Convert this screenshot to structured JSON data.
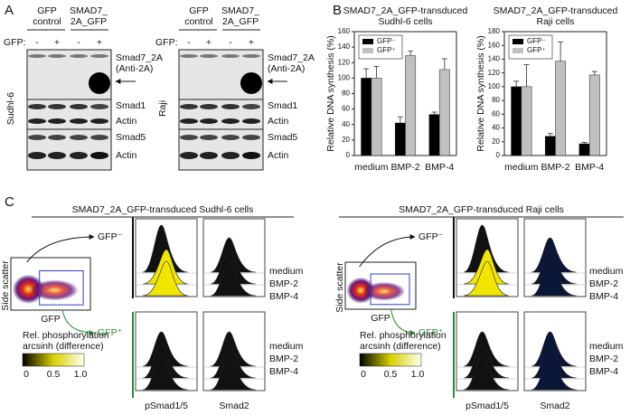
{
  "panel_labels": [
    "A",
    "B",
    "C"
  ],
  "panel_a": {
    "blots": [
      {
        "cell_line": "Sudhl-6",
        "headers": [
          [
            "GFP",
            "control"
          ],
          [
            "SMAD7_",
            "2A_GFP"
          ]
        ],
        "gfp_label": "GFP:",
        "gfp_states": [
          "-",
          "+",
          "-",
          "+"
        ],
        "bands": [
          "Smad7_2A",
          "(Anti-2A)",
          "Smad1",
          "Actin",
          "Smad5",
          "Actin"
        ]
      },
      {
        "cell_line": "Raji",
        "headers": [
          [
            "GFP",
            "control"
          ],
          [
            "SMAD7_",
            "2A_GFP"
          ]
        ],
        "gfp_label": "GFP:",
        "gfp_states": [
          "-",
          "+",
          "-",
          "+"
        ],
        "bands": [
          "Smad7_2A",
          "(Anti-2A)",
          "Smad1",
          "Actin",
          "Smad5",
          "Actin"
        ]
      }
    ]
  },
  "chart_data": [
    {
      "type": "bar",
      "title": "SMAD7_2A_GFP-transduced",
      "subtitle": "Sudhl-6 cells",
      "y_label": "Relative DNA synthesis (%)",
      "categories": [
        "medium",
        "BMP-2",
        "BMP-4"
      ],
      "series": [
        {
          "name": "GFP⁻",
          "color": "#000000",
          "values": [
            100,
            42,
            53
          ],
          "errors": [
            12,
            8,
            3
          ]
        },
        {
          "name": "GFP⁺",
          "color": "#c0c0c0",
          "values": [
            100,
            129,
            111
          ],
          "errors": [
            15,
            6,
            14
          ]
        }
      ],
      "ylim": [
        0,
        160
      ],
      "yticks": [
        0,
        20,
        40,
        60,
        80,
        100,
        120,
        140,
        160
      ],
      "legend": "top-left"
    },
    {
      "type": "bar",
      "title": "SMAD7_2A_GFP-transduced",
      "subtitle": "Raji cells",
      "y_label": "Relative DNA synthesis (%)",
      "categories": [
        "medium",
        "BMP-2",
        "BMP-4"
      ],
      "series": [
        {
          "name": "GFP⁻",
          "color": "#000000",
          "values": [
            100,
            28,
            17
          ],
          "errors": [
            8,
            4,
            2
          ]
        },
        {
          "name": "GFP⁺",
          "color": "#c0c0c0",
          "values": [
            100,
            137,
            117
          ],
          "errors": [
            32,
            28,
            5
          ]
        }
      ],
      "ylim": [
        0,
        180
      ],
      "yticks": [
        0,
        20,
        40,
        60,
        80,
        100,
        120,
        140,
        160,
        180
      ],
      "legend": "top-left"
    }
  ],
  "panel_c": {
    "halves": [
      {
        "title": "SMAD7_2A_GFP-transduced Sudhl-6 cells",
        "y_label": "Side scatter",
        "x_label": "GFP",
        "gates": [
          "GFP⁻",
          "GFP⁺"
        ],
        "conditions": [
          "medium",
          "BMP-2",
          "BMP-4"
        ],
        "markers": [
          "pSmad1/5",
          "Smad2"
        ],
        "colorbar": {
          "label_lines": [
            "Rel. phosphorylation",
            "arcsinh (difference)"
          ],
          "ticks": [
            "0",
            "0.5",
            "1.0"
          ]
        }
      },
      {
        "title": "SMAD7_2A_GFP-transduced Raji cells",
        "y_label": "Side scatter",
        "x_label": "GFP",
        "gates": [
          "GFP⁻",
          "GFP⁺"
        ],
        "conditions": [
          "medium",
          "BMP-2",
          "BMP-4"
        ],
        "markers": [
          "pSmad1/5",
          "Smad2"
        ],
        "colorbar": {
          "label_lines": [
            "Rel. phosphorylation",
            "arcsinh (difference)"
          ],
          "ticks": [
            "0",
            "0.5",
            "1.0"
          ]
        }
      }
    ]
  }
}
